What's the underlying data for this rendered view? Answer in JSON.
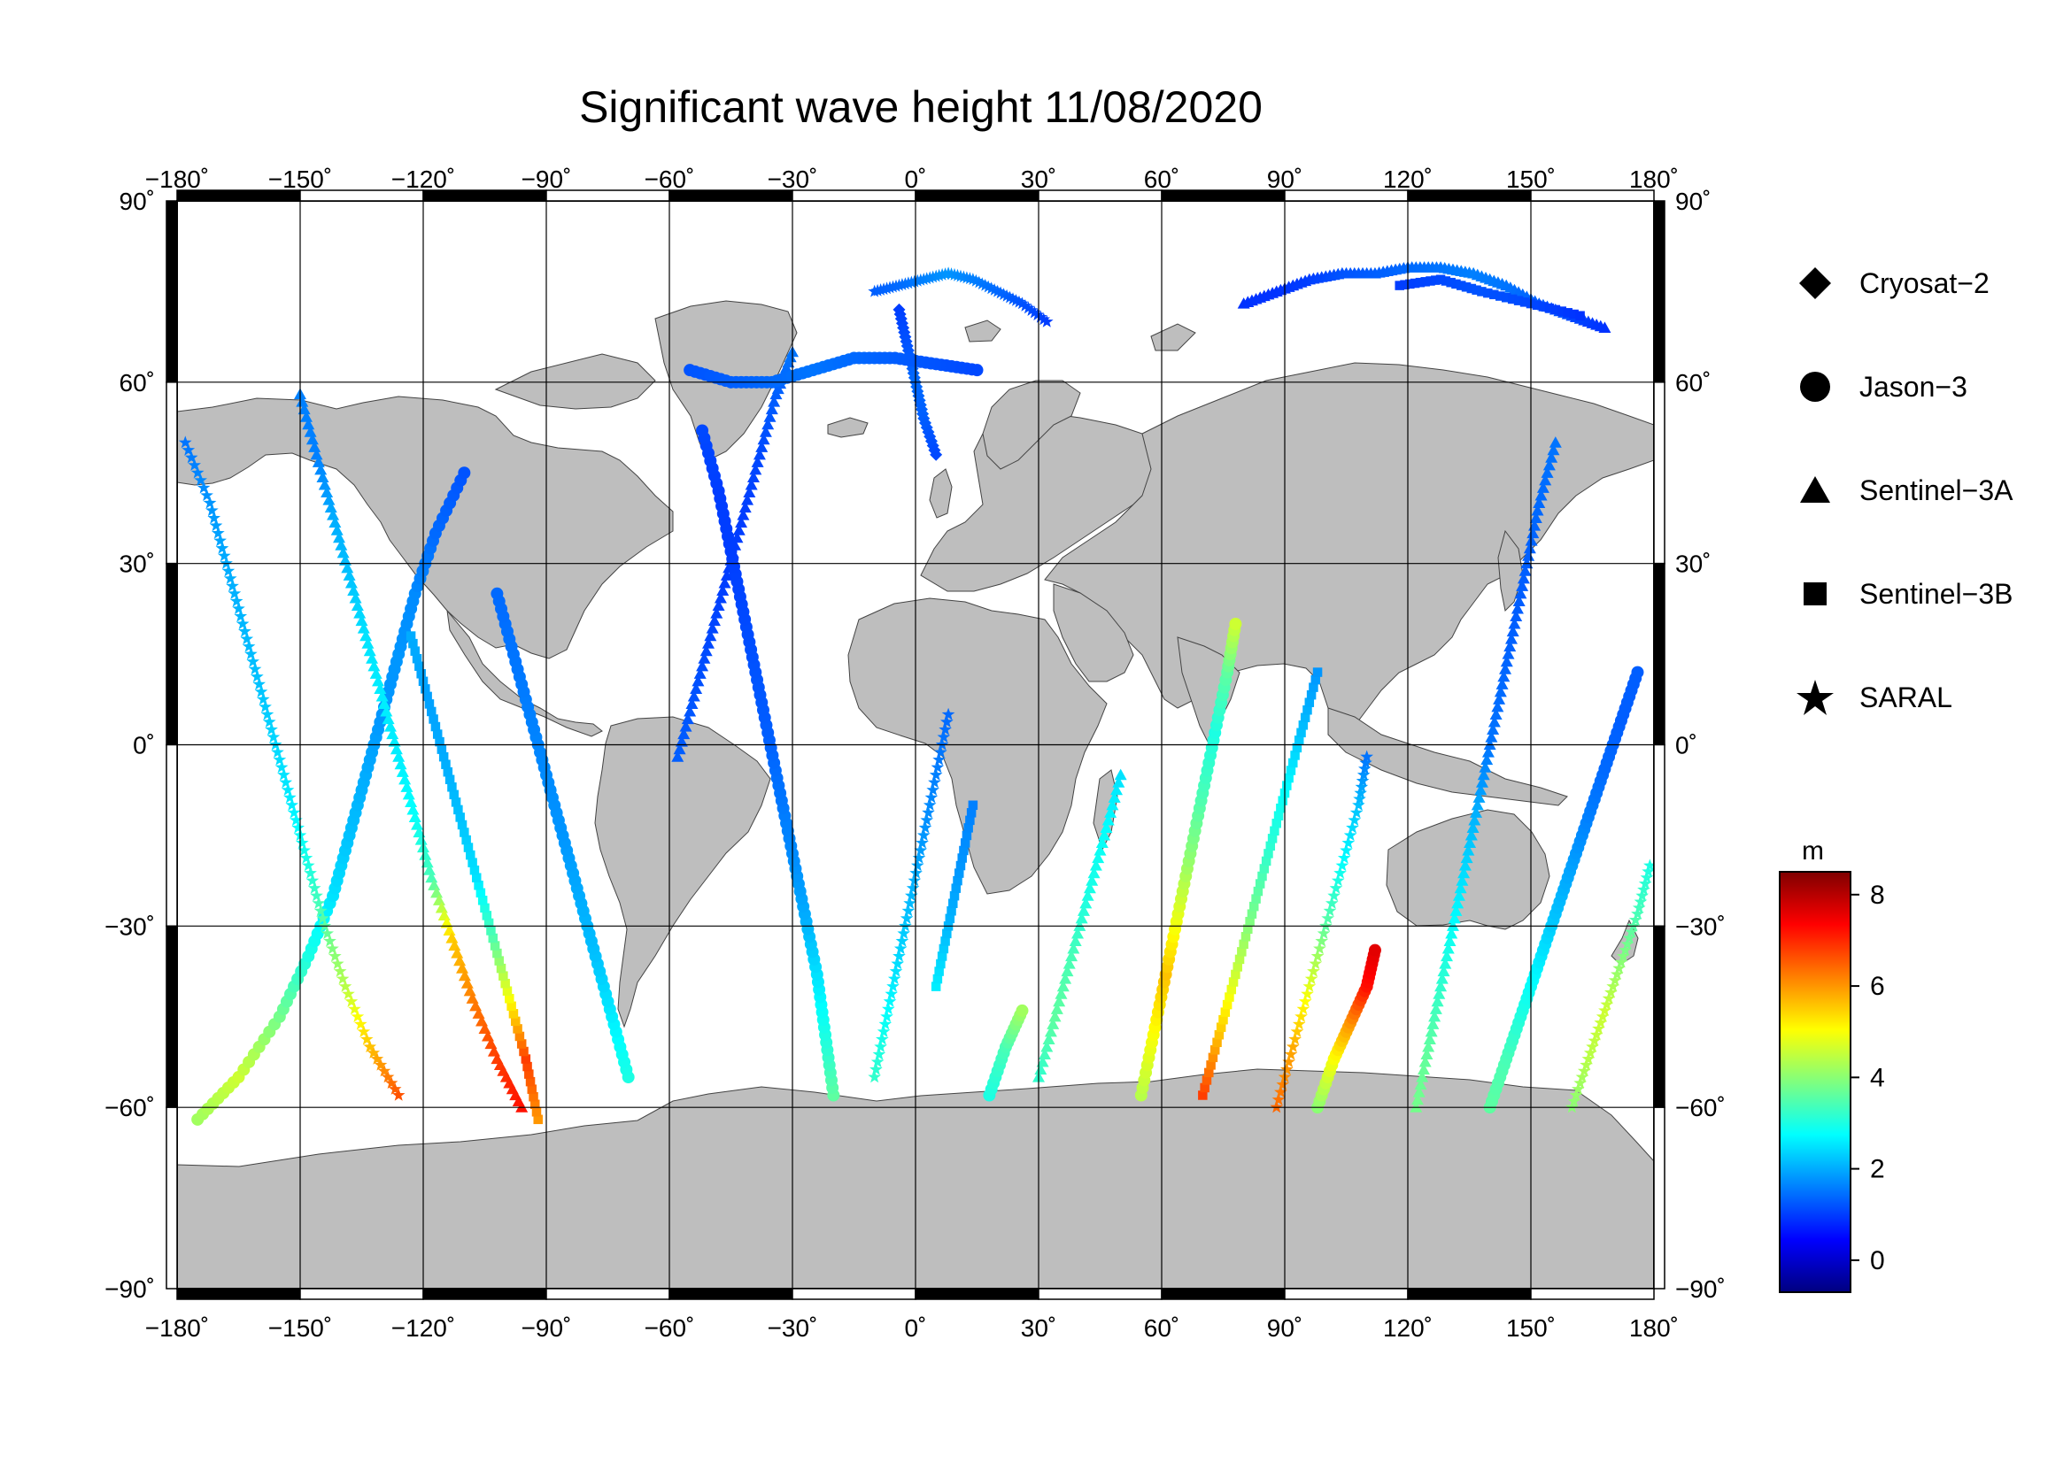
{
  "title": "Significant wave height 11/08/2020",
  "map": {
    "projection": "equirectangular",
    "lon_range": [
      -180,
      180
    ],
    "lat_range": [
      -90,
      90
    ],
    "lon_ticks": [
      "−180˚",
      "−150˚",
      "−120˚",
      "−90˚",
      "−60˚",
      "−30˚",
      "0˚",
      "30˚",
      "60˚",
      "90˚",
      "120˚",
      "150˚",
      "180˚"
    ],
    "lat_ticks_left": [
      "90˚",
      "60˚",
      "30˚",
      "0˚",
      "−30˚",
      "−60˚",
      "−90˚"
    ],
    "lat_ticks_right": [
      "90˚",
      "60˚",
      "30˚",
      "0˚",
      "−30˚",
      "−60˚",
      "−90˚"
    ],
    "land_color": "#bebebe",
    "ocean_color": "#ffffff",
    "grid": true
  },
  "legend": [
    {
      "label": "Cryosat−2",
      "marker": "diamond"
    },
    {
      "label": "Jason−3",
      "marker": "circle"
    },
    {
      "label": "Sentinel−3A",
      "marker": "triangle"
    },
    {
      "label": "Sentinel−3B",
      "marker": "square"
    },
    {
      "label": "SARAL",
      "marker": "star"
    }
  ],
  "colorbar": {
    "unit": "m",
    "range": [
      -0.7,
      8.5
    ],
    "ticks": [
      "8",
      "6",
      "4",
      "2",
      "0"
    ],
    "colormap": "jet"
  },
  "chart_data": {
    "type": "scatter",
    "variable": "significant wave height",
    "unit": "m",
    "satellites": [
      "Cryosat−2",
      "Jason−3",
      "Sentinel−3A",
      "Sentinel−3B",
      "SARAL"
    ],
    "tracks": [
      {
        "satellite": "Jason−3",
        "marker": "circle",
        "points": [
          [
            -175,
            -62,
            4.2
          ],
          [
            -165,
            -55,
            4.6
          ],
          [
            -155,
            -45,
            3.8
          ],
          [
            -148,
            -35,
            3.0
          ],
          [
            -142,
            -25,
            2.5
          ],
          [
            -138,
            -15,
            2.2
          ],
          [
            -134,
            -5,
            2.0
          ],
          [
            -130,
            5,
            1.8
          ],
          [
            -126,
            15,
            1.8
          ],
          [
            -122,
            25,
            1.7
          ],
          [
            -117,
            35,
            1.4
          ],
          [
            -110,
            45,
            1.2
          ]
        ]
      },
      {
        "satellite": "Sentinel−3A",
        "marker": "triangle",
        "points": [
          [
            -150,
            58,
            1.6
          ],
          [
            -146,
            48,
            1.6
          ],
          [
            -142,
            38,
            2.0
          ],
          [
            -138,
            28,
            2.2
          ],
          [
            -134,
            18,
            2.5
          ],
          [
            -130,
            8,
            2.6
          ],
          [
            -126,
            -2,
            2.6
          ],
          [
            -122,
            -12,
            2.8
          ],
          [
            -118,
            -22,
            3.4
          ],
          [
            -113,
            -32,
            5.5
          ],
          [
            -108,
            -42,
            6.2
          ],
          [
            -102,
            -52,
            6.8
          ],
          [
            -96,
            -60,
            7.2
          ]
        ]
      },
      {
        "satellite": "SARAL",
        "marker": "star",
        "points": [
          [
            -178,
            50,
            1.5
          ],
          [
            -172,
            40,
            1.8
          ],
          [
            -168,
            30,
            2.0
          ],
          [
            -164,
            20,
            2.1
          ],
          [
            -160,
            10,
            2.2
          ],
          [
            -156,
            0,
            2.4
          ],
          [
            -152,
            -10,
            2.6
          ],
          [
            -148,
            -20,
            3.0
          ],
          [
            -144,
            -30,
            3.6
          ],
          [
            -139,
            -40,
            4.4
          ],
          [
            -133,
            -50,
            5.6
          ],
          [
            -126,
            -58,
            6.6
          ]
        ]
      },
      {
        "satellite": "Jason−3",
        "marker": "circle",
        "points": [
          [
            -70,
            -55,
            3.0
          ],
          [
            -74,
            -45,
            2.6
          ],
          [
            -78,
            -35,
            2.2
          ],
          [
            -82,
            -25,
            2.0
          ],
          [
            -86,
            -15,
            1.8
          ],
          [
            -90,
            -5,
            1.7
          ],
          [
            -94,
            5,
            1.6
          ],
          [
            -98,
            15,
            1.5
          ],
          [
            -102,
            25,
            1.4
          ]
        ]
      },
      {
        "satellite": "Sentinel−3B",
        "marker": "square",
        "points": [
          [
            -92,
            -62,
            6.0
          ],
          [
            -95,
            -52,
            6.8
          ],
          [
            -99,
            -42,
            5.0
          ],
          [
            -103,
            -32,
            3.5
          ],
          [
            -107,
            -22,
            2.5
          ],
          [
            -111,
            -12,
            2.2
          ],
          [
            -115,
            -2,
            2.0
          ],
          [
            -119,
            8,
            1.9
          ],
          [
            -123,
            18,
            2.0
          ]
        ]
      },
      {
        "satellite": "Sentinel−3A",
        "marker": "triangle",
        "points": [
          [
            -58,
            -2,
            1.3
          ],
          [
            -54,
            8,
            1.2
          ],
          [
            -50,
            18,
            1.1
          ],
          [
            -46,
            28,
            1.0
          ],
          [
            -42,
            38,
            1.0
          ],
          [
            -38,
            48,
            1.1
          ],
          [
            -34,
            58,
            1.3
          ],
          [
            -30,
            65,
            1.5
          ]
        ]
      },
      {
        "satellite": "Jason−3",
        "marker": "circle",
        "points": [
          [
            -20,
            -58,
            3.6
          ],
          [
            -22,
            -48,
            3.0
          ],
          [
            -24,
            -38,
            2.5
          ],
          [
            -27,
            -28,
            2.0
          ],
          [
            -30,
            -18,
            1.7
          ],
          [
            -33,
            -8,
            1.5
          ],
          [
            -36,
            2,
            1.3
          ],
          [
            -39,
            12,
            1.2
          ],
          [
            -42,
            22,
            1.1
          ],
          [
            -45,
            32,
            1.0
          ],
          [
            -48,
            42,
            1.0
          ],
          [
            -52,
            52,
            1.1
          ]
        ]
      },
      {
        "satellite": "SARAL",
        "marker": "star",
        "points": [
          [
            -10,
            -55,
            3.2
          ],
          [
            -7,
            -45,
            2.8
          ],
          [
            -4,
            -35,
            2.4
          ],
          [
            -1,
            -25,
            2.1
          ],
          [
            2,
            -15,
            1.8
          ],
          [
            5,
            -5,
            1.6
          ],
          [
            8,
            5,
            1.4
          ]
        ]
      },
      {
        "satellite": "Sentinel−3B",
        "marker": "square",
        "points": [
          [
            5,
            -40,
            2.6
          ],
          [
            8,
            -30,
            2.1
          ],
          [
            11,
            -20,
            1.8
          ],
          [
            14,
            -10,
            1.6
          ]
        ]
      },
      {
        "satellite": "Jason−3",
        "marker": "circle",
        "points": [
          [
            18,
            -58,
            3.0
          ],
          [
            22,
            -50,
            3.4
          ],
          [
            26,
            -44,
            4.2
          ]
        ]
      },
      {
        "satellite": "Sentinel−3A",
        "marker": "triangle",
        "points": [
          [
            30,
            -55,
            3.2
          ],
          [
            34,
            -45,
            3.6
          ],
          [
            38,
            -35,
            3.4
          ],
          [
            42,
            -25,
            3.0
          ],
          [
            46,
            -15,
            2.8
          ],
          [
            50,
            -5,
            2.5
          ]
        ]
      },
      {
        "satellite": "Jason−3",
        "marker": "circle",
        "points": [
          [
            55,
            -58,
            4.4
          ],
          [
            58,
            -48,
            5.0
          ],
          [
            61,
            -38,
            5.6
          ],
          [
            64,
            -28,
            4.8
          ],
          [
            67,
            -18,
            4.0
          ],
          [
            70,
            -8,
            3.4
          ],
          [
            73,
            2,
            3.0
          ],
          [
            76,
            12,
            3.6
          ],
          [
            78,
            20,
            4.6
          ]
        ]
      },
      {
        "satellite": "Sentinel−3B",
        "marker": "square",
        "points": [
          [
            70,
            -58,
            6.8
          ],
          [
            74,
            -48,
            5.6
          ],
          [
            78,
            -38,
            4.6
          ],
          [
            82,
            -28,
            3.8
          ],
          [
            86,
            -18,
            3.2
          ],
          [
            90,
            -8,
            2.8
          ],
          [
            94,
            2,
            2.2
          ],
          [
            98,
            12,
            1.8
          ]
        ]
      },
      {
        "satellite": "SARAL",
        "marker": "star",
        "points": [
          [
            88,
            -60,
            6.4
          ],
          [
            92,
            -50,
            5.8
          ],
          [
            96,
            -40,
            4.8
          ],
          [
            100,
            -30,
            3.6
          ],
          [
            104,
            -20,
            2.8
          ],
          [
            108,
            -10,
            2.2
          ],
          [
            110,
            -2,
            1.5
          ]
        ]
      },
      {
        "satellite": "Jason−3",
        "marker": "circle",
        "points": [
          [
            98,
            -60,
            4.0
          ],
          [
            102,
            -52,
            5.0
          ],
          [
            106,
            -46,
            6.0
          ],
          [
            110,
            -40,
            7.2
          ],
          [
            112,
            -34,
            7.6
          ]
        ]
      },
      {
        "satellite": "Sentinel−3A",
        "marker": "triangle",
        "points": [
          [
            122,
            -60,
            3.8
          ],
          [
            125,
            -50,
            3.6
          ],
          [
            128,
            -40,
            3.2
          ],
          [
            131,
            -30,
            2.8
          ],
          [
            134,
            -20,
            2.4
          ],
          [
            137,
            -10,
            2.0
          ],
          [
            140,
            0,
            1.5
          ],
          [
            143,
            10,
            1.4
          ],
          [
            146,
            20,
            1.3
          ],
          [
            149,
            30,
            1.3
          ],
          [
            152,
            40,
            1.4
          ],
          [
            156,
            50,
            1.5
          ]
        ]
      },
      {
        "satellite": "Jason−3",
        "marker": "circle",
        "points": [
          [
            140,
            -60,
            3.6
          ],
          [
            144,
            -52,
            3.4
          ],
          [
            148,
            -44,
            3.0
          ],
          [
            152,
            -36,
            2.6
          ],
          [
            156,
            -28,
            2.2
          ],
          [
            160,
            -20,
            1.9
          ],
          [
            164,
            -12,
            1.6
          ],
          [
            168,
            -4,
            1.4
          ],
          [
            172,
            4,
            1.3
          ],
          [
            176,
            12,
            1.3
          ]
        ]
      },
      {
        "satellite": "SARAL",
        "marker": "star",
        "points": [
          [
            160,
            -60,
            4.0
          ],
          [
            164,
            -52,
            4.4
          ],
          [
            168,
            -44,
            4.6
          ],
          [
            172,
            -36,
            4.0
          ],
          [
            176,
            -28,
            3.4
          ],
          [
            179,
            -20,
            3.0
          ]
        ]
      },
      {
        "satellite": "Sentinel−3A",
        "marker": "triangle",
        "points": [
          [
            80,
            73,
            0.9
          ],
          [
            88,
            75,
            0.9
          ],
          [
            96,
            77,
            1.0
          ],
          [
            104,
            78,
            1.2
          ],
          [
            112,
            78,
            1.3
          ],
          [
            120,
            79,
            1.4
          ],
          [
            128,
            79,
            1.5
          ],
          [
            136,
            78,
            1.6
          ],
          [
            144,
            76,
            1.5
          ],
          [
            152,
            73,
            1.3
          ],
          [
            160,
            71,
            1.1
          ],
          [
            168,
            69,
            0.9
          ]
        ]
      },
      {
        "satellite": "Sentinel−3B",
        "marker": "square",
        "points": [
          [
            118,
            76,
            1.0
          ],
          [
            128,
            77,
            1.1
          ],
          [
            138,
            75,
            1.2
          ],
          [
            150,
            73,
            1.1
          ],
          [
            162,
            71,
            0.9
          ]
        ]
      },
      {
        "satellite": "SARAL",
        "marker": "star",
        "points": [
          [
            -10,
            75,
            1.3
          ],
          [
            -4,
            76,
            1.4
          ],
          [
            2,
            77,
            1.6
          ],
          [
            8,
            78,
            1.8
          ],
          [
            14,
            77,
            1.6
          ],
          [
            20,
            75,
            1.4
          ],
          [
            26,
            73,
            1.2
          ],
          [
            32,
            70,
            1.0
          ]
        ]
      },
      {
        "satellite": "Cryosat−2",
        "marker": "diamond",
        "points": [
          [
            -4,
            72,
            1.0
          ],
          [
            -2,
            66,
            1.2
          ],
          [
            0,
            60,
            1.4
          ],
          [
            2,
            54,
            1.3
          ],
          [
            5,
            48,
            1.1
          ]
        ]
      },
      {
        "satellite": "Jason−3",
        "marker": "circle",
        "points": [
          [
            -55,
            62,
            1.2
          ],
          [
            -45,
            60,
            1.3
          ],
          [
            -35,
            60,
            1.4
          ],
          [
            -25,
            62,
            1.5
          ],
          [
            -15,
            64,
            1.4
          ],
          [
            -5,
            64,
            1.3
          ],
          [
            5,
            63,
            1.2
          ],
          [
            15,
            62,
            1.1
          ]
        ]
      }
    ]
  }
}
